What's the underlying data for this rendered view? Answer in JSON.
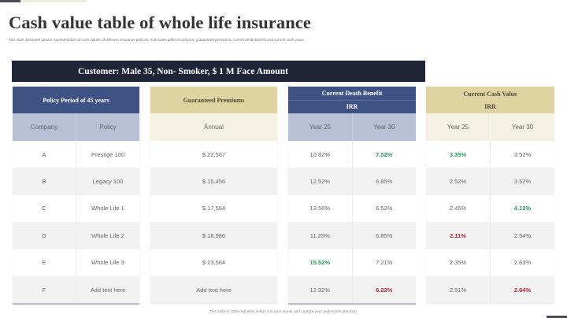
{
  "title": "Cash value table of whole life insurance",
  "subtitle": "This slide illustrates tabular representation of cash values of different insurance policies. It includes different policies, guaranteed premiums, current death benefit and current cash value.",
  "banner": "Customer: Male 35, Non- Smoker, $ 1 M Face Amount",
  "blocks": {
    "policy": {
      "header": "Policy Period of 45 years",
      "sub": [
        "Company",
        "Policy"
      ],
      "rows": [
        [
          "A",
          "Prestige 100"
        ],
        [
          "B",
          "Legacy 100"
        ],
        [
          "C",
          "Whole Life 1"
        ],
        [
          "D",
          "Whole Life 2"
        ],
        [
          "E",
          "Whole Life 3"
        ],
        [
          "F",
          "Add text here"
        ]
      ]
    },
    "premiums": {
      "header": "Guaranteed Premiums",
      "sub": [
        "Annual"
      ],
      "rows": [
        [
          "$ 22,567"
        ],
        [
          "$ 15,456"
        ],
        [
          "$ 17,564"
        ],
        [
          "$ 18,986"
        ],
        [
          "$ 23,564"
        ],
        [
          "Add text here"
        ]
      ]
    },
    "death_benefit": {
      "header": "Current Death Benefit",
      "header2": "IRR",
      "sub": [
        "Year 25",
        "Year 30"
      ],
      "rows": [
        [
          "10.82%",
          "7.52%"
        ],
        [
          "12.52%",
          "6.85%"
        ],
        [
          "13.56%",
          "6.52%"
        ],
        [
          "11.25%",
          "6.85%"
        ],
        [
          "15.52%",
          "7.21%"
        ],
        [
          "12.32%",
          "6.22%"
        ]
      ]
    },
    "cash_value": {
      "header": "Current Cash Value",
      "header2": "IRR",
      "sub": [
        "Year 25",
        "Year 30"
      ],
      "rows": [
        [
          "3.35%",
          "3.52%"
        ],
        [
          "2.52%",
          "3.52%"
        ],
        [
          "2.45%",
          "4.12%"
        ],
        [
          "2.11%",
          "2.54%"
        ],
        [
          "2.35%",
          "2.63%"
        ],
        [
          "2.51%",
          "2.64%"
        ]
      ]
    }
  },
  "highlights": {
    "green": "#2e9b5e",
    "red": "#c0252b"
  },
  "colors": {
    "banner": "#1f2437",
    "blue_header": "#3e5284",
    "blue_sub": "#b6c1d6",
    "tan_header": "#dfd3a2",
    "tan_sub": "#f4f0e2"
  },
  "footer": "This slide is 100% editable. Adapt it to your needs and capture your audience's attention."
}
